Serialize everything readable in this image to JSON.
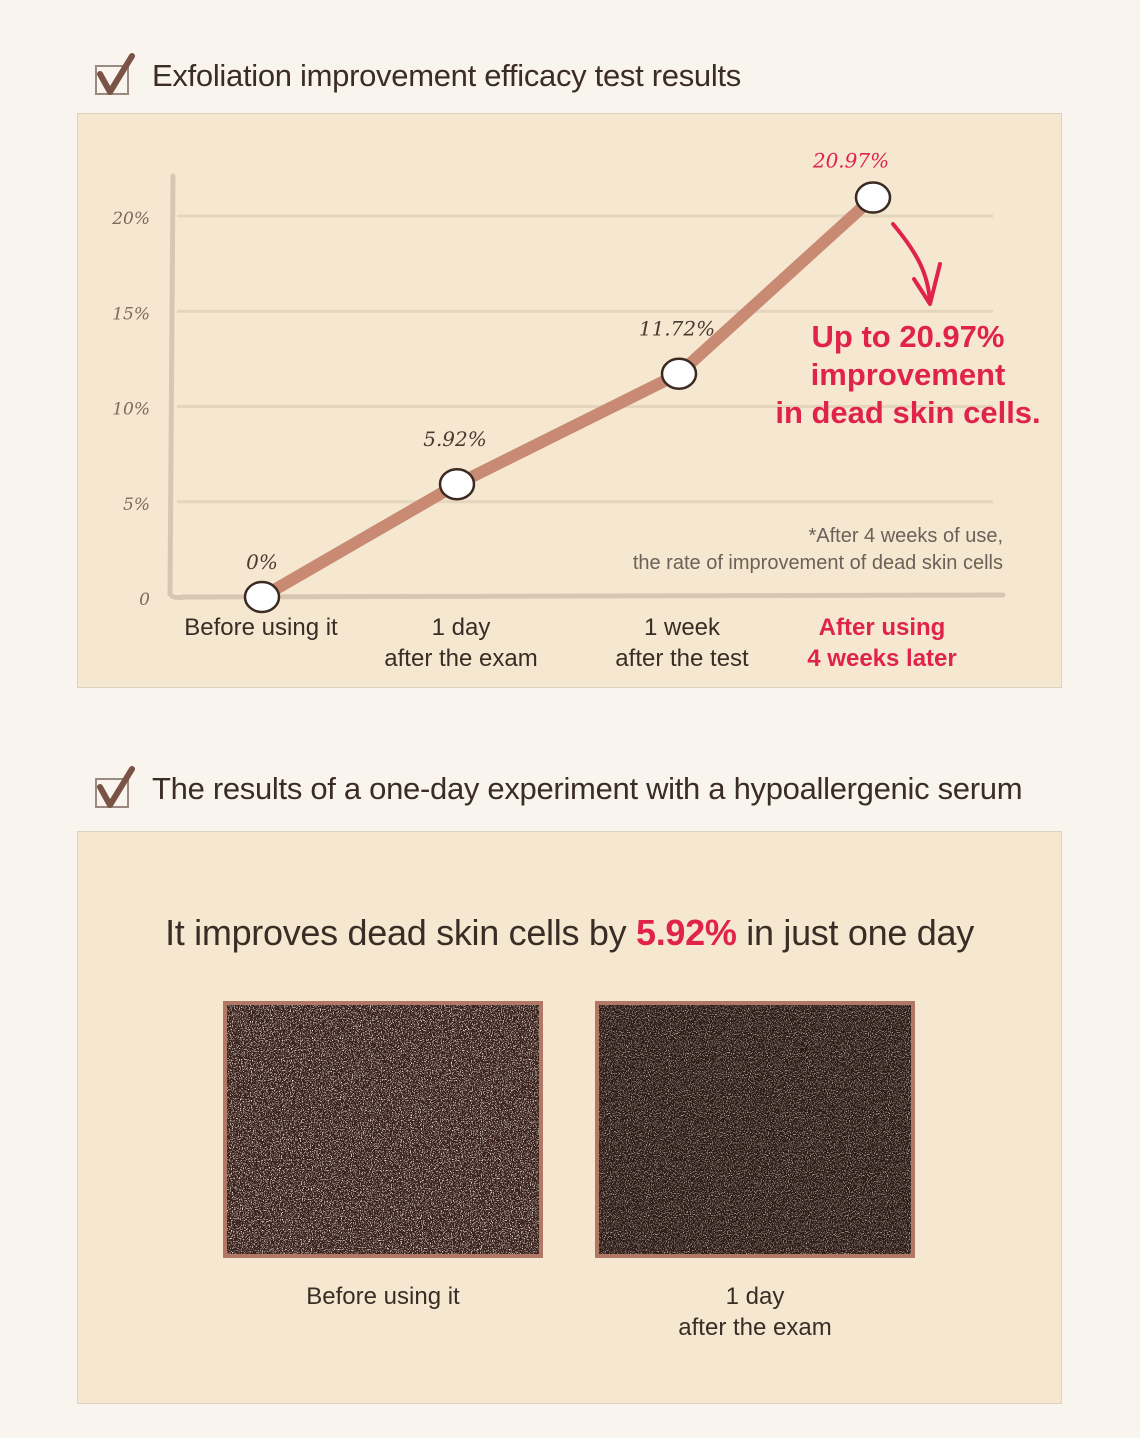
{
  "section1": {
    "title": "Exfoliation improvement efficacy test results"
  },
  "section2": {
    "title": "The results of a one-day experiment with a hypoallergenic serum"
  },
  "colors": {
    "accent": "#e0234b",
    "line": "#c98a74",
    "check": "#7a5346",
    "panel": "#f6e8d0"
  },
  "chart_data": {
    "type": "line",
    "categories": [
      "Before using it",
      "1 day after the exam",
      "1 week after the test",
      "After using 4 weeks later"
    ],
    "values": [
      0,
      5.92,
      11.72,
      20.97
    ],
    "data_labels": [
      "0%",
      "5.92%",
      "11.72%",
      "20.97%"
    ],
    "y_ticks": [
      0,
      5,
      10,
      15,
      20
    ],
    "y_tick_labels": [
      "0",
      "5%",
      "10%",
      "15%",
      "20%"
    ],
    "ylim": [
      0,
      20
    ],
    "grid": true,
    "highlight_last": true
  },
  "x_labels": [
    {
      "line1": "Before using it",
      "line2": ""
    },
    {
      "line1": "1 day",
      "line2": "after the exam"
    },
    {
      "line1": "1 week",
      "line2": "after the test"
    },
    {
      "line1": "After using",
      "line2": "4 weeks later"
    }
  ],
  "callout": {
    "line1": "Up to 20.97%",
    "line2": "improvement",
    "line3": "in dead skin cells."
  },
  "footnote": {
    "line1": "*After 4 weeks of use,",
    "line2": "the rate of improvement of dead skin cells"
  },
  "headline": {
    "prefix": "It improves dead skin cells by ",
    "highlight": "5.92%",
    "suffix": " in just one day"
  },
  "photos": [
    {
      "caption_line1": "Before using it",
      "caption_line2": ""
    },
    {
      "caption_line1": "1 day",
      "caption_line2": "after the exam"
    }
  ]
}
